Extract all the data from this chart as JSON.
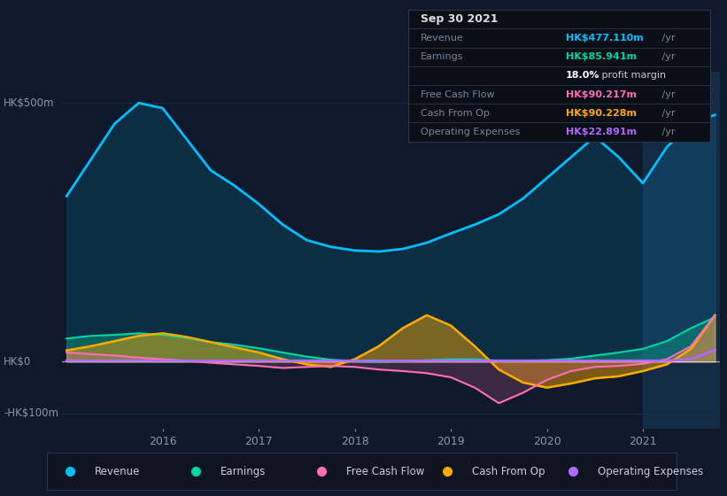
{
  "bg_color": "#0e1a2b",
  "plot_bg_color": "#0e1a2b",
  "x_years": [
    2015.0,
    2015.25,
    2015.5,
    2015.75,
    2016.0,
    2016.25,
    2016.5,
    2016.75,
    2017.0,
    2017.25,
    2017.5,
    2017.75,
    2018.0,
    2018.25,
    2018.5,
    2018.75,
    2019.0,
    2019.25,
    2019.5,
    2019.75,
    2020.0,
    2020.25,
    2020.5,
    2020.75,
    2021.0,
    2021.25,
    2021.5,
    2021.75
  ],
  "revenue": [
    320,
    390,
    460,
    500,
    490,
    430,
    370,
    340,
    305,
    265,
    235,
    222,
    215,
    213,
    218,
    230,
    248,
    265,
    285,
    315,
    355,
    395,
    435,
    395,
    345,
    415,
    460,
    477
  ],
  "earnings": [
    45,
    50,
    52,
    55,
    52,
    46,
    38,
    33,
    26,
    18,
    10,
    4,
    1,
    0,
    1,
    3,
    5,
    5,
    2,
    2,
    3,
    6,
    12,
    18,
    25,
    40,
    65,
    86
  ],
  "free_cf": [
    18,
    15,
    12,
    8,
    5,
    2,
    -2,
    -5,
    -8,
    -12,
    -10,
    -8,
    -10,
    -15,
    -18,
    -22,
    -30,
    -50,
    -80,
    -60,
    -35,
    -18,
    -10,
    -8,
    -4,
    5,
    30,
    90
  ],
  "cash_op": [
    22,
    30,
    40,
    50,
    55,
    48,
    38,
    28,
    18,
    5,
    -5,
    -10,
    5,
    30,
    65,
    90,
    70,
    30,
    -15,
    -40,
    -50,
    -42,
    -32,
    -28,
    -18,
    -5,
    25,
    90
  ],
  "op_exp": [
    2,
    2,
    2,
    2,
    2,
    2,
    2,
    2,
    2,
    2,
    2,
    2,
    2,
    2,
    2,
    2,
    2,
    2,
    2,
    2,
    2,
    2,
    2,
    2,
    2,
    2,
    5,
    23
  ],
  "ylim": [
    -130,
    560
  ],
  "ytick_vals": [
    -100,
    0,
    500
  ],
  "ytick_labels": [
    "-HK$100m",
    "HK$0",
    "HK$500m"
  ],
  "xtick_vals": [
    2016,
    2017,
    2018,
    2019,
    2020,
    2021
  ],
  "revenue_color": "#00bfff",
  "earnings_color": "#00d4a0",
  "free_cf_color": "#ff6eb4",
  "cash_op_color": "#ffaa00",
  "op_exp_color": "#b06aff",
  "highlight_start": 2021.0,
  "highlight_color": "#1a3a5c",
  "grid_color": "#1e3550",
  "zero_line_color": "#3a5a72",
  "tooltip_bg": "#0a0e17",
  "tooltip_border": "#2a3a4a",
  "legend_bg": "#0f1520",
  "legend_border": "#2a3a4a"
}
